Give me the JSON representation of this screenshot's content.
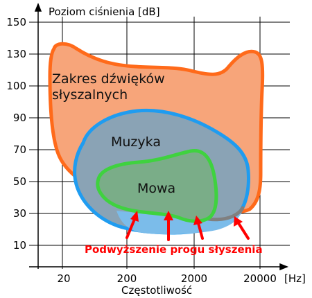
{
  "diagram": {
    "y_axis_label": "Poziom ciśnienia [dB]",
    "x_axis_label": "Częstotliwość",
    "x_unit": "[Hz]",
    "y_ticks": [
      "150",
      "130",
      "100",
      "90",
      "70",
      "50",
      "30",
      "10"
    ],
    "x_ticks": [
      "20",
      "200",
      "2000",
      "20000"
    ],
    "regions": {
      "hearing": {
        "label_line1": "Zakres dźwięków",
        "label_line2": "słyszalnych",
        "fill": "#f7a57a",
        "stroke": "#ff6a1a"
      },
      "music": {
        "label": "Muzyka",
        "fill": "#8aa3b5",
        "stroke": "#1f9cf0"
      },
      "speech": {
        "label": "Mowa",
        "fill": "#7aad88",
        "stroke": "#3fd23f"
      }
    },
    "annotation": {
      "label": "Podwyższenie progu słyszenia",
      "color": "#ff0000"
    },
    "threshold_shift_color": "#808080"
  }
}
